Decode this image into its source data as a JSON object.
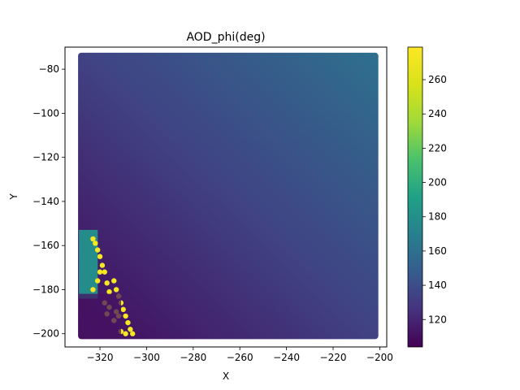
{
  "chart_data": {
    "type": "heatmap",
    "title": "AOD_phi(deg)",
    "xlabel": "X",
    "ylabel": "Y",
    "xlim": [
      -335,
      -197
    ],
    "ylim": [
      -206,
      -70
    ],
    "x_ticks": [
      -320,
      -300,
      -280,
      -260,
      -240,
      -220,
      -200
    ],
    "y_ticks": [
      -200,
      -180,
      -160,
      -140,
      -120,
      -100,
      -80
    ],
    "x_tick_labels": [
      "−320",
      "−300",
      "−280",
      "−260",
      "−240",
      "−220",
      "−200"
    ],
    "y_tick_labels": [
      "−200",
      "−180",
      "−160",
      "−140",
      "−120",
      "−100",
      "−80"
    ],
    "data_extent": {
      "x": [
        -328,
        -202
      ],
      "y": [
        -201,
        -74
      ]
    },
    "background_field": {
      "description_of_values": "phi increases smoothly from lower-left to upper-right",
      "corner_values": {
        "x_min_y_min": 108,
        "x_max_y_min": 130,
        "x_min_y_max": 138,
        "x_max_y_max": 160
      }
    },
    "regions": [
      {
        "name_shown": "",
        "value": 178,
        "x_range": [
          -328,
          -322
        ],
        "y_range": [
          -183,
          -154
        ]
      },
      {
        "name_shown": "",
        "value": 275,
        "points": [
          [
            -323,
            -157
          ],
          [
            -322,
            -159
          ],
          [
            -321,
            -162
          ],
          [
            -320,
            -165
          ],
          [
            -319,
            -169
          ],
          [
            -318,
            -172
          ],
          [
            -317,
            -177
          ],
          [
            -316,
            -181
          ],
          [
            -314,
            -176
          ],
          [
            -313,
            -180
          ],
          [
            -312,
            -183
          ],
          [
            -311,
            -186
          ],
          [
            -310,
            -189
          ],
          [
            -309,
            -192
          ],
          [
            -308,
            -195
          ],
          [
            -307,
            -198
          ],
          [
            -306,
            -200
          ],
          [
            -312,
            -192
          ],
          [
            -313,
            -190
          ],
          [
            -314,
            -194
          ],
          [
            -316,
            -188
          ],
          [
            -317,
            -191
          ],
          [
            -318,
            -186
          ],
          [
            -311,
            -199
          ],
          [
            -309,
            -200
          ],
          [
            -320,
            -172
          ],
          [
            -321,
            -176
          ],
          [
            -323,
            -180
          ]
        ]
      },
      {
        "name_shown": "",
        "value": 112,
        "x_range": [
          -328,
          -312
        ],
        "y_range": [
          -201,
          -183
        ]
      }
    ],
    "colorbar": {
      "vmin": 104,
      "vmax": 279,
      "ticks": [
        120,
        140,
        160,
        180,
        200,
        220,
        240,
        260
      ],
      "tick_labels": [
        "120",
        "140",
        "160",
        "180",
        "200",
        "220",
        "240",
        "260"
      ],
      "colormap": "viridis"
    },
    "grid": false
  }
}
